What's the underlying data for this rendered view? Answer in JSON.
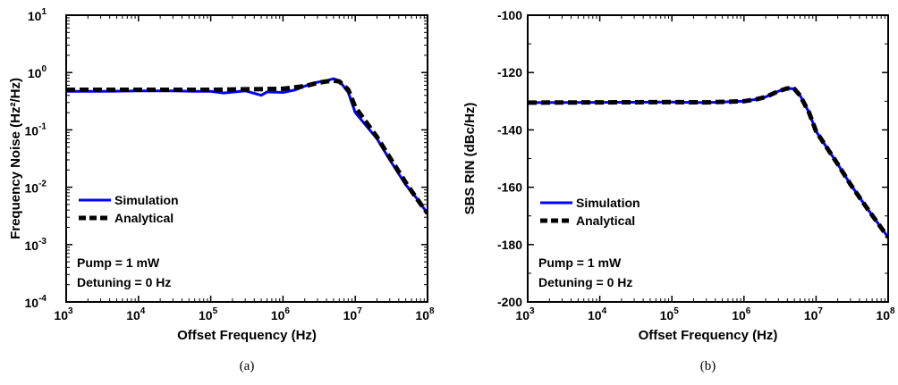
{
  "chart_data": [
    {
      "type": "line",
      "panel_label": "(a)",
      "xlabel": "Offset Frequency (Hz)",
      "ylabel": "Frequency Noise (Hz²/Hz)",
      "x_scale": "log",
      "y_scale": "log",
      "xlim": [
        1000,
        100000000
      ],
      "ylim": [
        0.0001,
        10
      ],
      "x_ticks": [
        {
          "value": 1000,
          "base": "10",
          "exp": "3"
        },
        {
          "value": 10000,
          "base": "10",
          "exp": "4"
        },
        {
          "value": 100000,
          "base": "10",
          "exp": "5"
        },
        {
          "value": 1000000,
          "base": "10",
          "exp": "6"
        },
        {
          "value": 10000000,
          "base": "10",
          "exp": "7"
        },
        {
          "value": 100000000,
          "base": "10",
          "exp": "8"
        }
      ],
      "y_ticks": [
        {
          "value": 0.0001,
          "base": "10",
          "exp": "-4"
        },
        {
          "value": 0.001,
          "base": "10",
          "exp": "-3"
        },
        {
          "value": 0.01,
          "base": "10",
          "exp": "-2"
        },
        {
          "value": 0.1,
          "base": "10",
          "exp": "-1"
        },
        {
          "value": 1,
          "base": "10",
          "exp": "0"
        },
        {
          "value": 10,
          "base": "10",
          "exp": "1"
        }
      ],
      "legend_position": "lower-left",
      "annotations": [
        "Pump = 1 mW",
        "Detuning = 0 Hz"
      ],
      "series": [
        {
          "name": "Simulation",
          "color": "#0000ff",
          "style": "solid",
          "x": [
            1000,
            3000,
            10000,
            30000,
            60000,
            100000,
            150000,
            300000,
            500000,
            600000,
            1000000,
            1500000,
            2000000,
            3000000,
            4000000,
            5000000,
            6000000,
            8000000,
            10000000,
            20000000,
            30000000,
            50000000,
            70000000,
            100000000
          ],
          "y": [
            0.47,
            0.47,
            0.48,
            0.48,
            0.47,
            0.47,
            0.44,
            0.48,
            0.4,
            0.46,
            0.45,
            0.5,
            0.58,
            0.68,
            0.72,
            0.78,
            0.72,
            0.45,
            0.2,
            0.07,
            0.03,
            0.011,
            0.0065,
            0.0035
          ]
        },
        {
          "name": "Analytical",
          "color": "#000000",
          "style": "dashed",
          "x": [
            1000,
            10000,
            100000,
            1000000,
            2000000,
            3000000,
            4000000,
            5000000,
            6000000,
            8000000,
            10000000,
            20000000,
            30000000,
            50000000,
            70000000,
            100000000
          ],
          "y": [
            0.5,
            0.5,
            0.5,
            0.52,
            0.58,
            0.66,
            0.7,
            0.72,
            0.7,
            0.5,
            0.25,
            0.075,
            0.033,
            0.012,
            0.0065,
            0.0035
          ]
        }
      ]
    },
    {
      "type": "line",
      "panel_label": "(b)",
      "xlabel": "Offset Frequency (Hz)",
      "ylabel": "SBS RIN (dBc/Hz)",
      "x_scale": "log",
      "y_scale": "linear",
      "xlim": [
        1000,
        100000000
      ],
      "ylim": [
        -200,
        -100
      ],
      "x_ticks": [
        {
          "value": 1000,
          "base": "10",
          "exp": "3"
        },
        {
          "value": 10000,
          "base": "10",
          "exp": "4"
        },
        {
          "value": 100000,
          "base": "10",
          "exp": "5"
        },
        {
          "value": 1000000,
          "base": "10",
          "exp": "6"
        },
        {
          "value": 10000000,
          "base": "10",
          "exp": "7"
        },
        {
          "value": 100000000,
          "base": "10",
          "exp": "8"
        }
      ],
      "y_ticks": [
        {
          "value": -200,
          "label": "-200"
        },
        {
          "value": -180,
          "label": "-180"
        },
        {
          "value": -160,
          "label": "-160"
        },
        {
          "value": -140,
          "label": "-140"
        },
        {
          "value": -120,
          "label": "-120"
        },
        {
          "value": -100,
          "label": "-100"
        }
      ],
      "legend_position": "lower-left",
      "annotations": [
        "Pump = 1 mW",
        "Detuning = 0 Hz"
      ],
      "series": [
        {
          "name": "Simulation",
          "color": "#0000ff",
          "style": "solid",
          "x": [
            1000,
            10000,
            100000,
            300000,
            1000000,
            1500000,
            2000000,
            3000000,
            4000000,
            5000000,
            6000000,
            8000000,
            10000000,
            20000000,
            30000000,
            50000000,
            100000000
          ],
          "y": [
            -130.5,
            -130.4,
            -130.3,
            -130.5,
            -130.0,
            -129.3,
            -128.5,
            -126.5,
            -125.5,
            -125.7,
            -128,
            -134,
            -140.5,
            -152,
            -159,
            -167,
            -177.5
          ]
        },
        {
          "name": "Analytical",
          "color": "#000000",
          "style": "dashed",
          "x": [
            1000,
            10000,
            100000,
            300000,
            1000000,
            1500000,
            2000000,
            3000000,
            4000000,
            5000000,
            6000000,
            8000000,
            10000000,
            20000000,
            30000000,
            50000000,
            100000000
          ],
          "y": [
            -130.5,
            -130.4,
            -130.3,
            -130.4,
            -130.0,
            -129.3,
            -128.5,
            -126.5,
            -125.5,
            -125.7,
            -128,
            -134,
            -140.5,
            -152,
            -159,
            -167,
            -177.5
          ]
        }
      ]
    }
  ]
}
